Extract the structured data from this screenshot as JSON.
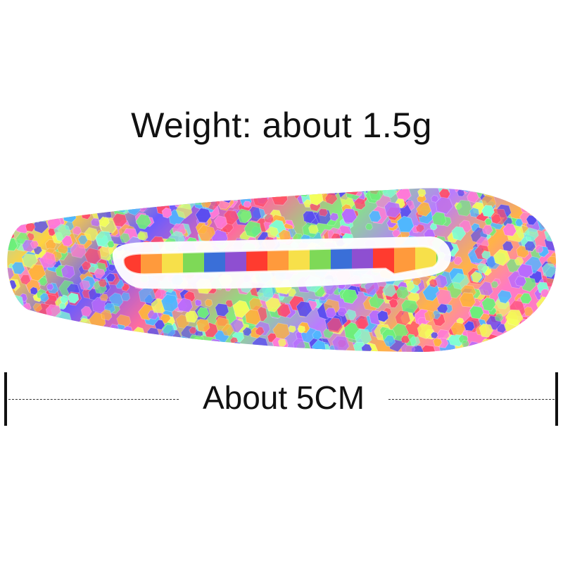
{
  "weight_label": "Weight: about 1.5g",
  "size_label": "About 5CM",
  "product": {
    "icon": "rainbow-glitter-hair-clip-image",
    "stripe_colors": [
      "#ff3b2f",
      "#ff9a3c",
      "#f7e04a",
      "#7ed957",
      "#3a6fd8",
      "#8e4fd1"
    ],
    "sequin_colors": [
      "#ff4d6d",
      "#ffb23f",
      "#f4ff5a",
      "#6df07a",
      "#4fb8ff",
      "#5a4df0",
      "#b86bff",
      "#ff7ad9",
      "#7fffd4"
    ]
  }
}
